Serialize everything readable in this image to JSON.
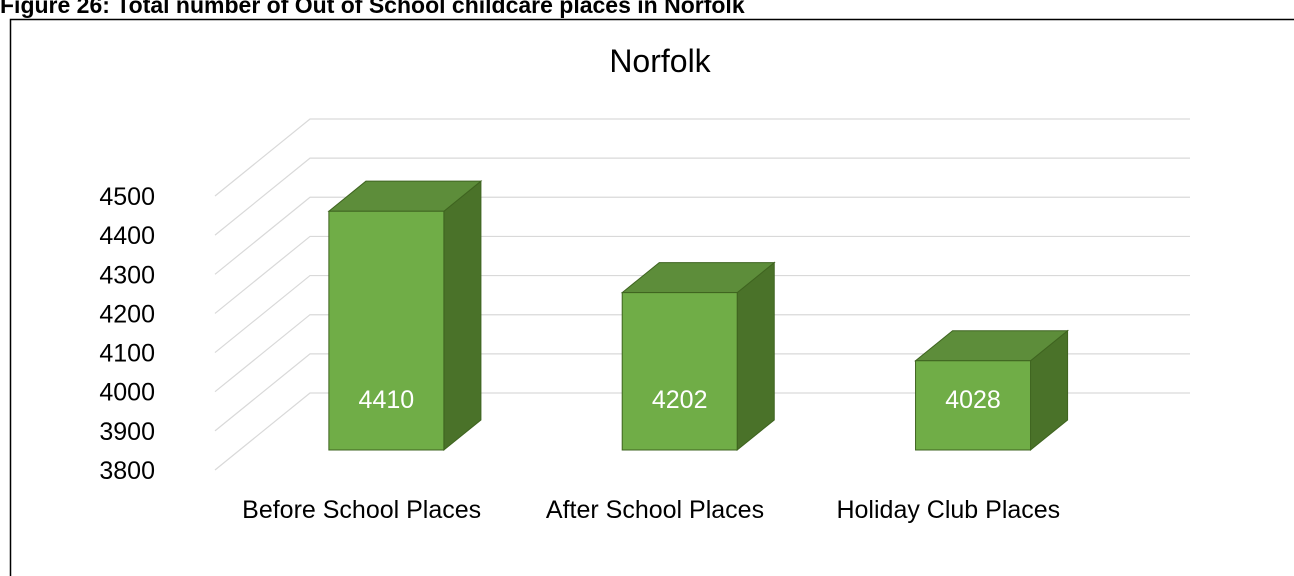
{
  "caption": "Figure 26: Total number of Out of School childcare places in Norfolk",
  "chart_data": {
    "type": "bar3d",
    "title": "Norfolk",
    "categories": [
      "Before School Places",
      "After School Places",
      "Holiday Club Places"
    ],
    "values": [
      4410,
      4202,
      4028
    ],
    "color": "#70ad47",
    "ylim": [
      3800,
      4500
    ],
    "yticks": [
      3800,
      3900,
      4000,
      4100,
      4200,
      4300,
      4400,
      4500
    ],
    "grid": true
  }
}
